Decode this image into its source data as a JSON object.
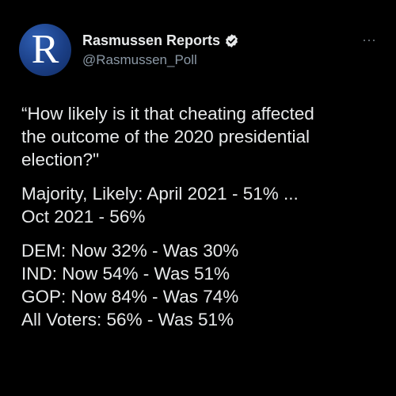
{
  "author": {
    "avatar_letter": "R",
    "display_name": "Rasmussen Reports",
    "handle": "@Rasmussen_Poll",
    "verified": true
  },
  "icons": {
    "more": "more-horizontal-icon",
    "verified": "verified-badge-icon"
  },
  "colors": {
    "background": "#000000",
    "text": "#e7e9ea",
    "secondary_text": "#8b98a5",
    "avatar_blue": "#1b3f86"
  },
  "more_label": "···",
  "tweet": {
    "question": [
      "“How likely is it that cheating affected",
      "the outcome of the 2020 presidential",
      "election?\""
    ],
    "majority": [
      "Majority, Likely: April 2021 - 51% ...",
      "Oct 2021 - 56%"
    ],
    "breakdown": [
      "DEM: Now 32% - Was 30%",
      "IND: Now 54% - Was 51%",
      "GOP: Now 84% - Was 74%",
      "All Voters: 56% - Was 51%"
    ]
  }
}
